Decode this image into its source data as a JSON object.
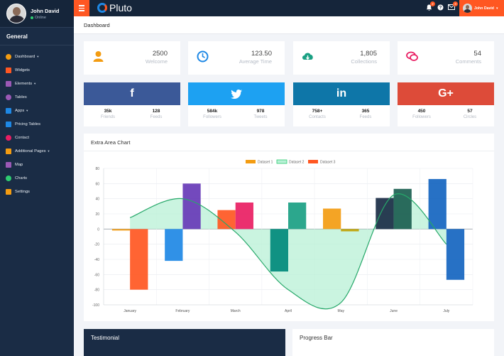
{
  "colors": {
    "accent": "#ff5722",
    "sidebar": "#1a2c45",
    "topbar": "#15253a"
  },
  "sidebar": {
    "user_name": "John David",
    "user_status": "Online",
    "section_title": "General",
    "items": [
      {
        "label": "Dashboard",
        "icon": "dashboard-icon",
        "color": "#f39c12",
        "caret": true
      },
      {
        "label": "Widgets",
        "icon": "clock-icon",
        "color": "#ff5722",
        "caret": false
      },
      {
        "label": "Elements",
        "icon": "diamond-icon",
        "color": "#9b59b6",
        "caret": true
      },
      {
        "label": "Tables",
        "icon": "table-icon",
        "color": "#9b59b6",
        "caret": false
      },
      {
        "label": "Apps",
        "icon": "briefcase-icon",
        "color": "#1e88e5",
        "caret": true
      },
      {
        "label": "Pricing Tables",
        "icon": "price-table-icon",
        "color": "#1e88e5",
        "caret": false
      },
      {
        "label": "Contact",
        "icon": "paper-plane-icon",
        "color": "#e91e63",
        "caret": false
      },
      {
        "label": "Additional Pages",
        "icon": "layers-icon",
        "color": "#f39c12",
        "caret": true
      },
      {
        "label": "Map",
        "icon": "map-icon",
        "color": "#9b59b6",
        "caret": false
      },
      {
        "label": "Charts",
        "icon": "bar-chart-icon",
        "color": "#2ecc71",
        "caret": false
      },
      {
        "label": "Settings",
        "icon": "gear-icon",
        "color": "#f39c12",
        "caret": false
      }
    ]
  },
  "topbar": {
    "logo_text": "Pluto",
    "user_name": "John David",
    "badges": {
      "bell": "2",
      "question": "",
      "mail": "3"
    }
  },
  "page": {
    "title": "Dashboard"
  },
  "stats": [
    {
      "value": "2500",
      "label": "Welcome",
      "icon": "user-icon",
      "color": "#f39c12"
    },
    {
      "value": "123.50",
      "label": "Average Time",
      "icon": "clock-icon",
      "color": "#1e88e5"
    },
    {
      "value": "1,805",
      "label": "Collections",
      "icon": "cloud-download-icon",
      "color": "#1aa083"
    },
    {
      "value": "54",
      "label": "Comments",
      "icon": "comments-icon",
      "color": "#e91e63"
    }
  ],
  "social": [
    {
      "icon": "facebook-icon",
      "glyph": "f",
      "color": "#3b5998",
      "a_num": "35k",
      "a_lab": "Friends",
      "b_num": "128",
      "b_lab": "Feeds"
    },
    {
      "icon": "twitter-icon",
      "glyph": "",
      "color": "#1da1f2",
      "a_num": "584k",
      "a_lab": "Followers",
      "b_num": "978",
      "b_lab": "Tweets"
    },
    {
      "icon": "linkedin-icon",
      "glyph": "in",
      "color": "#0e76a8",
      "a_num": "758+",
      "a_lab": "Contacts",
      "b_num": "365",
      "b_lab": "Feeds"
    },
    {
      "icon": "google-plus-icon",
      "glyph": "G+",
      "color": "#dd4b39",
      "a_num": "450",
      "a_lab": "Followers",
      "b_num": "57",
      "b_lab": "Circles"
    }
  ],
  "chart_panel": {
    "title": "Extra Area Chart"
  },
  "chart_data": {
    "type": "bar",
    "title": "",
    "xlabel": "",
    "ylabel": "",
    "ylim": [
      -100,
      80
    ],
    "yticks": [
      80,
      60,
      40,
      20,
      0,
      -20,
      -40,
      -60,
      -80,
      -100
    ],
    "categories": [
      "January",
      "February",
      "March",
      "April",
      "May",
      "June",
      "July"
    ],
    "legend_position": "top-center",
    "grid": true,
    "series": [
      {
        "name": "Dataset 1",
        "type": "bar",
        "color": "#f39c12",
        "values": [
          -2,
          -42,
          25,
          -56,
          27,
          41,
          66
        ]
      },
      {
        "name": "Dataset 2",
        "type": "area",
        "color": "#2ecc71",
        "fill": "#b8f0d6",
        "values": [
          15,
          40,
          -4,
          -80,
          -97,
          45,
          -20
        ]
      },
      {
        "name": "Dataset 3",
        "type": "bar",
        "color": "#ff5722",
        "values": [
          -80,
          60,
          35,
          35,
          -3,
          53,
          -67
        ]
      }
    ],
    "bar_colors": [
      [
        "#f39c12",
        "#ff5722"
      ],
      [
        "#1e88e5",
        "#673ab7"
      ],
      [
        "#ff5722",
        "#e91e63"
      ],
      [
        "#00897b",
        "#1aa083"
      ],
      [
        "#f39c12",
        "#c0a000"
      ],
      [
        "#1a2c45",
        "#1b5e50"
      ],
      [
        "#1565c0",
        "#1565c0"
      ]
    ]
  },
  "bottom": {
    "testimonial_title": "Testimonial",
    "progress_title": "Progress Bar"
  }
}
